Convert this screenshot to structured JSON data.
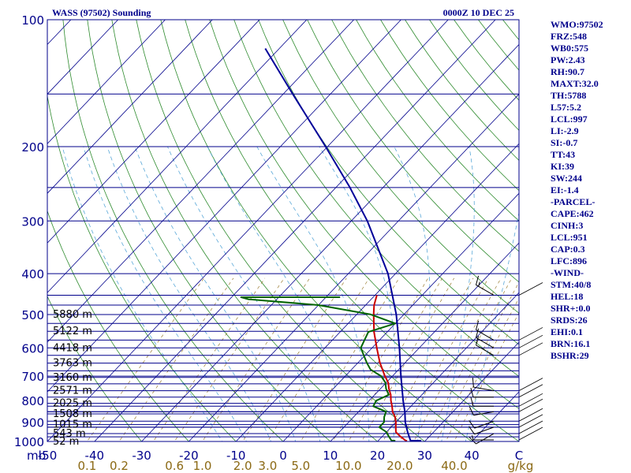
{
  "title": "WASS (97502) Sounding",
  "date": "0000Z 10 DEC 25",
  "colors": {
    "isobar": "#00008b",
    "isotherm": "#00008b",
    "dry_adiabat": "#2e8b2e",
    "moist_adiabat": "#5aa8d8",
    "mixing_ratio": "#8b6914",
    "temperature": "#cc0000",
    "dewpoint": "#006400",
    "parcel": "#000099"
  },
  "indices": [
    "WMO:97502",
    "FRZ:548",
    "WB0:575",
    "PW:2.43",
    "RH:90.7",
    "MAXT:32.0",
    "TH:5788",
    "L57:5.2",
    "LCL:997",
    "LI:-2.9",
    "SI:-0.7",
    "TT:43",
    "KI:39",
    "SW:244",
    "EI:-1.4",
    "-PARCEL-",
    "CAPE:462",
    "CINH:3",
    "LCL:951",
    "CAP:0.3",
    "LFC:896",
    "-WIND-",
    "STM:40/8",
    "HEL:18",
    "SHR+:0.0",
    "SRDS:26",
    "EHI:0.1",
    "BRN:16.1",
    "BSHR:29"
  ],
  "chart_data": {
    "type": "line",
    "title": "WASS (97502) Sounding",
    "ylabel": "mb",
    "ylim": [
      1000,
      100
    ],
    "xlim": [
      -50,
      50
    ],
    "pressure_labels": [
      100,
      200,
      300,
      400,
      500,
      600,
      700,
      800,
      900,
      1000
    ],
    "temperature_labels": [
      "-50",
      "-40",
      "-30",
      "-20",
      "-10",
      "0",
      "10",
      "20",
      "30",
      "40",
      "C"
    ],
    "mixing_ratio_labels": [
      {
        "label": "0.1",
        "value": 0.1
      },
      {
        "label": "0.2",
        "value": 0.2
      },
      {
        "label": "0.6",
        "value": 0.6
      },
      {
        "label": "1.0",
        "value": 1.0
      },
      {
        "label": "2.0",
        "value": 2.0
      },
      {
        "label": "3.0",
        "value": 3.0
      },
      {
        "label": "5.0",
        "value": 5.0
      },
      {
        "label": "10.0",
        "value": 10.0
      },
      {
        "label": "20.0",
        "value": 20.0
      },
      {
        "label": "40.0",
        "value": 40.0
      },
      {
        "label": "g/kg",
        "value": null
      }
    ],
    "height_labels": [
      {
        "p": 500,
        "label": "5880 m"
      },
      {
        "p": 548,
        "label": "5122 m"
      },
      {
        "p": 600,
        "label": "4418 m"
      },
      {
        "p": 652,
        "label": "3763 m"
      },
      {
        "p": 705,
        "label": "3160 m"
      },
      {
        "p": 758,
        "label": "2571 m"
      },
      {
        "p": 812,
        "label": "2025 m"
      },
      {
        "p": 860,
        "label": "1508 m"
      },
      {
        "p": 912,
        "label": "1015 m"
      },
      {
        "p": 958,
        "label": "543 m"
      },
      {
        "p": 1006,
        "label": "52 m"
      }
    ],
    "mandatory_levels": [
      1000,
      925,
      850,
      700,
      500,
      400,
      300,
      250,
      200,
      150,
      100
    ],
    "sig_levels": [
      1006,
      975,
      958,
      925,
      912,
      895,
      860,
      850,
      825,
      812,
      785,
      758,
      730,
      705,
      680,
      652,
      625,
      600,
      575,
      548,
      525,
      500,
      475,
      450
    ],
    "series": [
      {
        "name": "Temperature",
        "color": "#cc0000",
        "points": [
          [
            1006,
            26.5
          ],
          [
            1000,
            26.0
          ],
          [
            975,
            24.0
          ],
          [
            950,
            22.0
          ],
          [
            925,
            21.0
          ],
          [
            900,
            20.0
          ],
          [
            875,
            18.8
          ],
          [
            850,
            17.2
          ],
          [
            825,
            16.0
          ],
          [
            800,
            14.6
          ],
          [
            775,
            13.4
          ],
          [
            750,
            11.8
          ],
          [
            725,
            10.4
          ],
          [
            700,
            8.4
          ],
          [
            650,
            4.6
          ],
          [
            600,
            1.0
          ],
          [
            550,
            -2.8
          ],
          [
            500,
            -6.4
          ],
          [
            475,
            -8.2
          ],
          [
            450,
            -9.6
          ]
        ]
      },
      {
        "name": "Dewpoint",
        "color": "#006400",
        "points": [
          [
            1006,
            24.0
          ],
          [
            1000,
            23.0
          ],
          [
            975,
            21.5
          ],
          [
            950,
            20.0
          ],
          [
            925,
            17.5
          ],
          [
            900,
            17.5
          ],
          [
            875,
            16.5
          ],
          [
            850,
            15.8
          ],
          [
            825,
            12.0
          ],
          [
            800,
            11.5
          ],
          [
            775,
            13.0
          ],
          [
            750,
            11.2
          ],
          [
            725,
            9.8
          ],
          [
            700,
            7.6
          ],
          [
            675,
            4.0
          ],
          [
            650,
            1.8
          ],
          [
            600,
            -2.4
          ],
          [
            550,
            -4.0
          ],
          [
            525,
            0.0
          ],
          [
            500,
            -7.0
          ],
          [
            475,
            -20.0
          ],
          [
            460,
            -36.0
          ],
          [
            455,
            -38.0
          ],
          [
            455,
            -17.0
          ]
        ]
      },
      {
        "name": "Parcel",
        "color": "#000099",
        "points": [
          [
            1006,
            29.5
          ],
          [
            1000,
            27.0
          ],
          [
            950,
            24.5
          ],
          [
            900,
            22.0
          ],
          [
            850,
            19.8
          ],
          [
            800,
            17.2
          ],
          [
            700,
            11.8
          ],
          [
            600,
            5.8
          ],
          [
            500,
            -1.6
          ],
          [
            400,
            -11.6
          ],
          [
            300,
            -26.6
          ],
          [
            250,
            -37.0
          ],
          [
            200,
            -50.4
          ],
          [
            150,
            -68.0
          ],
          [
            117,
            -83.0
          ]
        ]
      }
    ],
    "winds": [
      {
        "p": 1006,
        "dir": 270,
        "spd": 5
      },
      {
        "p": 958,
        "dir": 240,
        "spd": 10
      },
      {
        "p": 925,
        "dir": 250,
        "spd": 10
      },
      {
        "p": 895,
        "dir": 250,
        "spd": 10
      },
      {
        "p": 850,
        "dir": 260,
        "spd": 10
      },
      {
        "p": 825,
        "dir": 270,
        "spd": 10
      },
      {
        "p": 785,
        "dir": 270,
        "spd": 10
      },
      {
        "p": 758,
        "dir": 280,
        "spd": 10
      },
      {
        "p": 625,
        "dir": 300,
        "spd": 10
      },
      {
        "p": 600,
        "dir": 300,
        "spd": 10
      },
      {
        "p": 575,
        "dir": 300,
        "spd": 10
      },
      {
        "p": 450,
        "dir": 300,
        "spd": 15
      }
    ]
  }
}
